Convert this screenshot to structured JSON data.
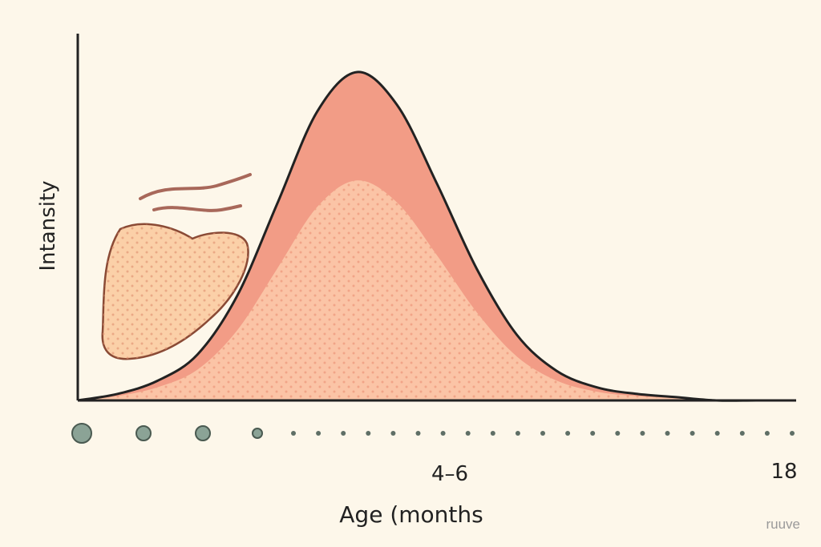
{
  "chart_data": {
    "type": "area",
    "title": "",
    "xlabel": "Age (months",
    "ylabel": "Intansity",
    "x_tick_labels": [
      "4–6",
      "18"
    ],
    "x_ticks": [
      6,
      18
    ],
    "xlim": [
      0,
      18
    ],
    "ylim": [
      0,
      1
    ],
    "grid": false,
    "legend": "none",
    "series": [
      {
        "x": [
          0,
          1,
          2,
          3,
          4,
          5,
          6,
          7,
          8,
          9,
          10,
          11,
          12,
          13,
          14,
          15,
          16,
          17,
          18
        ],
        "y": [
          0.0,
          0.02,
          0.06,
          0.14,
          0.32,
          0.6,
          0.88,
          1.0,
          0.9,
          0.66,
          0.4,
          0.2,
          0.09,
          0.04,
          0.02,
          0.01,
          0.0,
          0.0,
          0.0
        ]
      }
    ],
    "timeline_markers": 25,
    "colors": {
      "outer_fill": "#f29c86",
      "inner_fill": "#fbc4a6",
      "stroke": "#222222",
      "marker": "#8ba396",
      "blob_fill": "#fbd0a8",
      "blob_stroke": "#8a4a35",
      "wave_stroke": "#a8685a"
    }
  },
  "watermark": "ruuve"
}
